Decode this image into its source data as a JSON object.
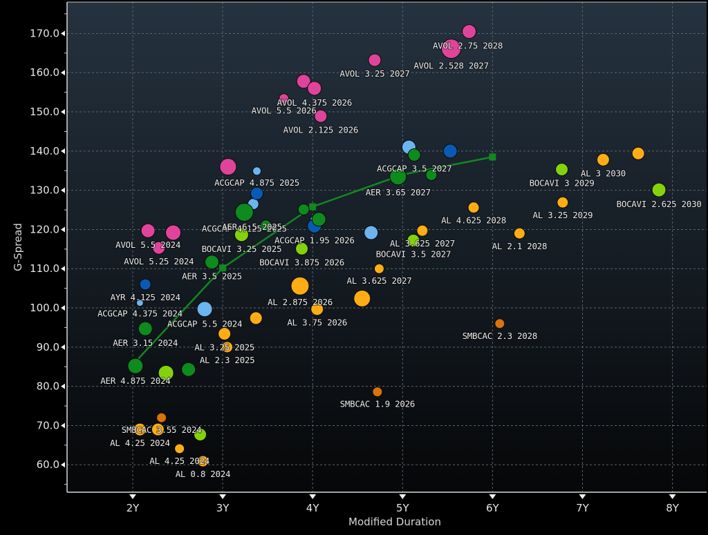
{
  "chart_data": {
    "type": "scatter",
    "title": "",
    "xlabel": "Modified Duration",
    "ylabel": "G-Spread",
    "xlim": [
      1.27,
      8.38
    ],
    "ylim": [
      53.0,
      178.0
    ],
    "x_ticks": [
      {
        "value": 2,
        "label": "2Y"
      },
      {
        "value": 3,
        "label": "3Y"
      },
      {
        "value": 4,
        "label": "4Y"
      },
      {
        "value": 5,
        "label": "5Y"
      },
      {
        "value": 6,
        "label": "6Y"
      },
      {
        "value": 7,
        "label": "7Y"
      },
      {
        "value": 8,
        "label": "8Y"
      }
    ],
    "y_ticks": [
      {
        "value": 60,
        "label": "60.0"
      },
      {
        "value": 70,
        "label": "70.0"
      },
      {
        "value": 80,
        "label": "80.0"
      },
      {
        "value": 90,
        "label": "90.0"
      },
      {
        "value": 100,
        "label": "100.0"
      },
      {
        "value": 110,
        "label": "110.0"
      },
      {
        "value": 120,
        "label": "120.0"
      },
      {
        "value": 130,
        "label": "130.0"
      },
      {
        "value": 140,
        "label": "140.0"
      },
      {
        "value": 150,
        "label": "150.0"
      },
      {
        "value": 160,
        "label": "160.0"
      },
      {
        "value": 170,
        "label": "170.0"
      }
    ],
    "y_minor_step": 5,
    "grid": true,
    "legend": "none",
    "issuer_colors": {
      "AVOL": "#e0449a",
      "ACGCAP_light": "#6cb4f0",
      "ACGCAP_dark": "#0a5ab4",
      "AER": "#0e8a1e",
      "BOCAVI": "#84d20c",
      "AL": "#ffad14",
      "SMBCAC": "#d9730a"
    },
    "series": [
      {
        "name": "AVOL",
        "color_key": "AVOL",
        "points": [
          {
            "x": 5.74,
            "y": 170.5,
            "size": 10,
            "label": "AVOL 2.75 2028",
            "label_pos": "below-left"
          },
          {
            "x": 5.54,
            "y": 166.1,
            "size": 14,
            "label": "AVOL 2.528 2027",
            "label_pos": "below"
          },
          {
            "x": 4.69,
            "y": 163.2,
            "size": 9,
            "label": "AVOL 3.25 2027",
            "label_pos": "below"
          },
          {
            "x": 3.9,
            "y": 157.8,
            "size": 10,
            "label": "",
            "label_pos": "none"
          },
          {
            "x": 4.02,
            "y": 156.0,
            "size": 10,
            "label": "AVOL 4.375 2026",
            "label_pos": "below"
          },
          {
            "x": 3.68,
            "y": 153.4,
            "size": 7,
            "label": "AVOL 5.5 2026",
            "label_pos": "below"
          },
          {
            "x": 4.09,
            "y": 148.9,
            "size": 9,
            "label": "AVOL 2.125 2026",
            "label_pos": "below"
          },
          {
            "x": 3.06,
            "y": 136.0,
            "size": 12,
            "label": "",
            "label_pos": "none"
          },
          {
            "x": 2.17,
            "y": 119.7,
            "size": 10,
            "label": "AVOL 5.5 2024",
            "label_pos": "below"
          },
          {
            "x": 2.45,
            "y": 119.2,
            "size": 11,
            "label": "",
            "label_pos": "none"
          },
          {
            "x": 2.29,
            "y": 115.3,
            "size": 9,
            "label": "AVOL 5.25 2024",
            "label_pos": "below"
          }
        ]
      },
      {
        "name": "ACGCAP",
        "color_key": "ACGCAP_light",
        "points": [
          {
            "x": 5.07,
            "y": 141.0,
            "size": 10,
            "label": "",
            "label_pos": "none"
          },
          {
            "x": 3.38,
            "y": 134.9,
            "size": 6,
            "label": "ACGCAP 4.875 2025",
            "label_pos": "below"
          },
          {
            "x": 3.34,
            "y": 126.5,
            "size": 8,
            "label": "",
            "label_pos": "none"
          },
          {
            "x": 4.04,
            "y": 122.2,
            "size": 9,
            "label": "",
            "label_pos": "none"
          },
          {
            "x": 4.65,
            "y": 119.2,
            "size": 10,
            "label": "",
            "label_pos": "none"
          },
          {
            "x": 2.08,
            "y": 101.3,
            "size": 5,
            "label": "ACGCAP 4.375 2024",
            "label_pos": "below"
          },
          {
            "x": 2.8,
            "y": 99.7,
            "size": 11,
            "label": "ACGCAP 5.5 2024",
            "label_pos": "below"
          }
        ]
      },
      {
        "name": "ACGCAP (dark)",
        "color_key": "ACGCAP_dark",
        "points": [
          {
            "x": 5.53,
            "y": 140.0,
            "size": 10,
            "label": "",
            "label_pos": "none"
          },
          {
            "x": 3.38,
            "y": 129.2,
            "size": 9,
            "label": "",
            "label_pos": "none"
          },
          {
            "x": 4.02,
            "y": 120.9,
            "size": 10,
            "label": "ACGCAP 1.95 2026",
            "label_pos": "below"
          },
          {
            "x": 2.14,
            "y": 106.0,
            "size": 8,
            "label": "AYR 4.125 2024",
            "label_pos": "below"
          }
        ]
      },
      {
        "name": "AER",
        "color_key": "AER",
        "points": [
          {
            "x": 5.13,
            "y": 139.0,
            "size": 9,
            "label": "ACGCAP 3.5 2027",
            "label_pos": "below"
          },
          {
            "x": 4.95,
            "y": 133.5,
            "size": 12,
            "label": "AER 3.65 2027",
            "label_pos": "below"
          },
          {
            "x": 5.32,
            "y": 133.9,
            "size": 8,
            "label": "",
            "label_pos": "none"
          },
          {
            "x": 3.24,
            "y": 124.4,
            "size": 13,
            "label": "ACGCAP 4.125 2025",
            "label_pos": "below"
          },
          {
            "x": 3.48,
            "y": 121.0,
            "size": 8,
            "label": "AER 6.5 2025",
            "label_pos": "above-left"
          },
          {
            "x": 3.9,
            "y": 125.1,
            "size": 8,
            "label": "",
            "label_pos": "none"
          },
          {
            "x": 4.07,
            "y": 122.6,
            "size": 10,
            "label": "",
            "label_pos": "none"
          },
          {
            "x": 2.88,
            "y": 111.7,
            "size": 10,
            "label": "AER 3.5 2025",
            "label_pos": "below"
          },
          {
            "x": 2.14,
            "y": 94.7,
            "size": 10,
            "label": "AER 3.15 2024",
            "label_pos": "below"
          },
          {
            "x": 2.03,
            "y": 85.2,
            "size": 11,
            "label": "AER 4.875 2024",
            "label_pos": "below"
          },
          {
            "x": 2.62,
            "y": 84.3,
            "size": 10,
            "label": "",
            "label_pos": "none"
          }
        ]
      },
      {
        "name": "BOCAVI",
        "color_key": "BOCAVI",
        "points": [
          {
            "x": 3.21,
            "y": 118.7,
            "size": 10,
            "label": "BOCAVI 3.25 2025",
            "label_pos": "below"
          },
          {
            "x": 3.88,
            "y": 115.1,
            "size": 9,
            "label": "BOCAVI 3.875 2026",
            "label_pos": "below"
          },
          {
            "x": 5.12,
            "y": 117.2,
            "size": 9,
            "label": "BOCAVI 3.5 2027",
            "label_pos": "below"
          },
          {
            "x": 6.77,
            "y": 135.3,
            "size": 9,
            "label": "BOCAVI 3 2029",
            "label_pos": "below"
          },
          {
            "x": 7.85,
            "y": 130.1,
            "size": 10,
            "label": "BOCAVI 2.625 2030",
            "label_pos": "below"
          },
          {
            "x": 2.37,
            "y": 83.4,
            "size": 11,
            "label": "",
            "label_pos": "none"
          },
          {
            "x": 2.75,
            "y": 67.7,
            "size": 9,
            "label": "",
            "label_pos": "none"
          }
        ]
      },
      {
        "name": "AL",
        "color_key": "AL",
        "points": [
          {
            "x": 5.22,
            "y": 119.7,
            "size": 8,
            "label": "AL 3.625 2027",
            "label_pos": "below"
          },
          {
            "x": 5.79,
            "y": 125.6,
            "size": 8,
            "label": "AL 4.625 2028",
            "label_pos": "below"
          },
          {
            "x": 6.3,
            "y": 119.0,
            "size": 8,
            "label": "AL 2.1 2028",
            "label_pos": "below"
          },
          {
            "x": 6.78,
            "y": 126.9,
            "size": 8,
            "label": "AL 3.25 2029",
            "label_pos": "below"
          },
          {
            "x": 7.23,
            "y": 137.8,
            "size": 9,
            "label": "AL 3 2030",
            "label_pos": "below"
          },
          {
            "x": 7.62,
            "y": 139.4,
            "size": 9,
            "label": "",
            "label_pos": "none"
          },
          {
            "x": 4.74,
            "y": 110.0,
            "size": 7,
            "label": "AL 3.625 2027",
            "label_pos": "below"
          },
          {
            "x": 3.86,
            "y": 105.6,
            "size": 13,
            "label": "AL 2.875 2026",
            "label_pos": "below"
          },
          {
            "x": 4.05,
            "y": 99.7,
            "size": 9,
            "label": "AL 3.75 2026",
            "label_pos": "below"
          },
          {
            "x": 4.55,
            "y": 102.4,
            "size": 12,
            "label": "",
            "label_pos": "none"
          },
          {
            "x": 3.37,
            "y": 97.4,
            "size": 9,
            "label": "",
            "label_pos": "none"
          },
          {
            "x": 3.02,
            "y": 93.4,
            "size": 9,
            "label": "AL 3.25 2025",
            "label_pos": "below"
          },
          {
            "x": 3.05,
            "y": 90.0,
            "size": 8,
            "label": "AL 2.3 2025",
            "label_pos": "below"
          },
          {
            "x": 2.08,
            "y": 69.0,
            "size": 9,
            "label": "AL 4.25 2024",
            "label_pos": "below"
          },
          {
            "x": 2.28,
            "y": 69.0,
            "size": 9,
            "label": "",
            "label_pos": "none"
          },
          {
            "x": 2.52,
            "y": 64.1,
            "size": 7,
            "label": "AL 4.25 2024",
            "label_pos": "below"
          },
          {
            "x": 2.78,
            "y": 60.9,
            "size": 8,
            "label": "AL 0.8 2024",
            "label_pos": "below"
          }
        ]
      },
      {
        "name": "SMBCAC",
        "color_key": "SMBCAC",
        "points": [
          {
            "x": 6.08,
            "y": 96.0,
            "size": 7,
            "label": "SMBCAC 2.3 2028",
            "label_pos": "below"
          },
          {
            "x": 4.72,
            "y": 78.6,
            "size": 7,
            "label": "SMBCAC 1.9 2026",
            "label_pos": "below"
          },
          {
            "x": 2.32,
            "y": 72.0,
            "size": 7,
            "label": "SMBCAC 3.55 2024",
            "label_pos": "below"
          }
        ]
      }
    ],
    "curve": {
      "name": "Issuer curve",
      "color": "#12881f",
      "points": [
        {
          "x": 2.0,
          "y": 85.5
        },
        {
          "x": 3.0,
          "y": 110.2
        },
        {
          "x": 4.0,
          "y": 125.8
        },
        {
          "x": 5.0,
          "y": 134.0
        },
        {
          "x": 6.0,
          "y": 138.5
        }
      ],
      "markers": [
        {
          "x": 3.0,
          "y": 110.2
        },
        {
          "x": 4.0,
          "y": 125.8
        },
        {
          "x": 6.0,
          "y": 138.5
        }
      ]
    }
  }
}
